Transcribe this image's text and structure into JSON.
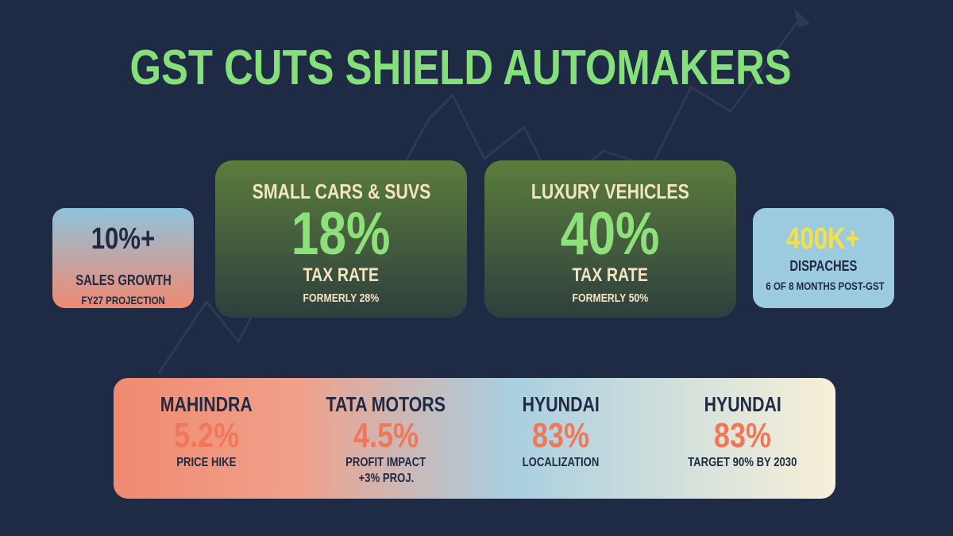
{
  "title": "GST CUTS SHIELD AUTOMAKERS",
  "left_stat": {
    "value": "10%+",
    "label": "SALES GROWTH",
    "note": "FY27 PROJECTION"
  },
  "tax_cards": [
    {
      "category": "SMALL CARS & SUVS",
      "rate": "18%",
      "label": "TAX RATE",
      "note": "FORMERLY 28%"
    },
    {
      "category": "LUXURY VEHICLES",
      "rate": "40%",
      "label": "TAX RATE",
      "note": "FORMERLY 50%"
    }
  ],
  "right_stat": {
    "value": "400K+",
    "label": "DISPACHES",
    "note": "6 OF 8 MONTHS POST-GST"
  },
  "companies": [
    {
      "name": "MAHINDRA",
      "value": "5.2%",
      "lines": [
        "PRICE HIKE"
      ]
    },
    {
      "name": "TATA MOTORS",
      "value": "4.5%",
      "lines": [
        "PROFIT IMPACT",
        "+3% PROJ."
      ]
    },
    {
      "name": "HYUNDAI",
      "value": "83%",
      "lines": [
        "LOCALIZATION"
      ]
    },
    {
      "name": "HYUNDAI",
      "value": "83%",
      "lines": [
        "TARGET 90% BY 2030"
      ]
    }
  ]
}
